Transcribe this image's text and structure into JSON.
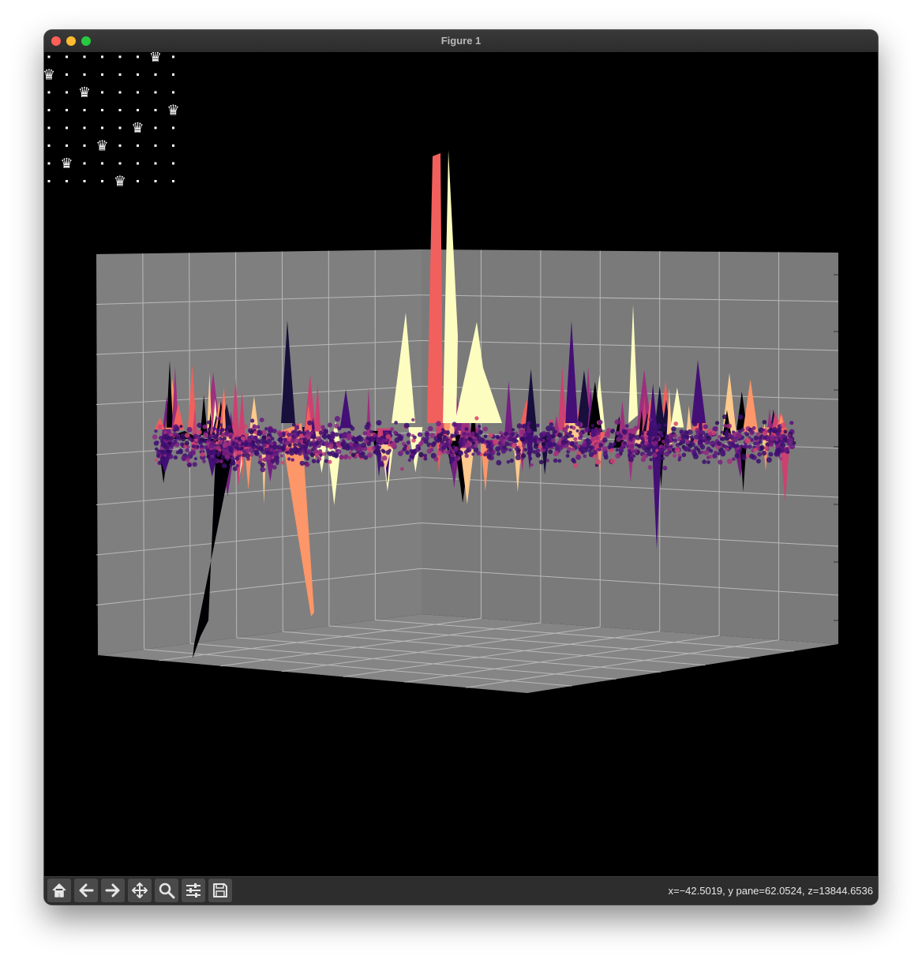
{
  "window": {
    "title": "Figure 1"
  },
  "toolbar": {
    "buttons": [
      {
        "name": "home-button",
        "icon": "home-icon"
      },
      {
        "name": "back-button",
        "icon": "arrow-left-icon"
      },
      {
        "name": "forward-button",
        "icon": "arrow-right-icon"
      },
      {
        "name": "pan-button",
        "icon": "move-icon"
      },
      {
        "name": "zoom-button",
        "icon": "magnifier-icon"
      },
      {
        "name": "configure-subplots-button",
        "icon": "sliders-icon"
      },
      {
        "name": "save-button",
        "icon": "floppy-disk-icon"
      }
    ],
    "coordinates": "x=−42.5019, y pane=62.0524, z=13844.6536"
  },
  "queens_board": {
    "size": 8,
    "queen_columns": [
      6,
      0,
      2,
      7,
      5,
      3,
      1,
      4
    ],
    "glyph": "♛"
  },
  "chart_data": {
    "type": "surface3d",
    "colormap": "magma",
    "pane_color": "#7f7f7f",
    "background": "#000000",
    "points": "dense purple scatter cloud around z=0"
  }
}
